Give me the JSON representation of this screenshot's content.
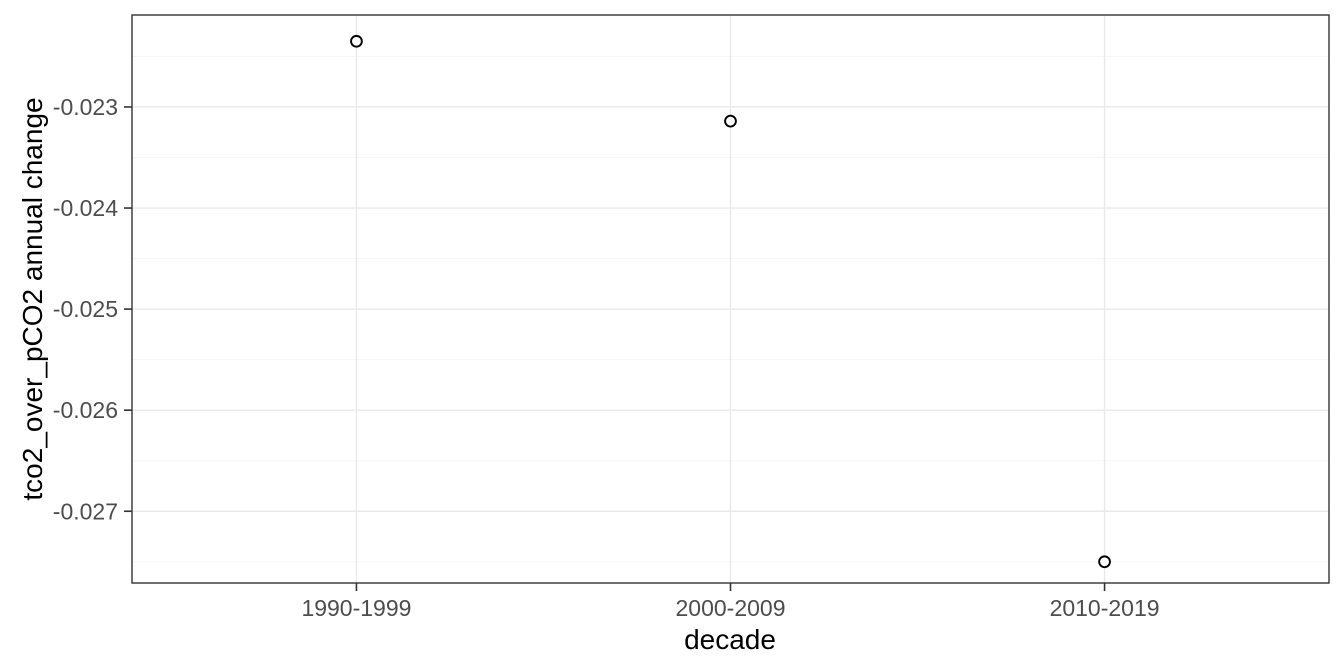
{
  "figure": {
    "background": "#ffffff"
  },
  "chart_data": {
    "type": "scatter",
    "title": "",
    "xlabel": "decade",
    "ylabel": "tco2_over_pCO2 annual change",
    "categories": [
      "1990-1999",
      "2000-2009",
      "2010-2019"
    ],
    "values": [
      -0.02235,
      -0.02314,
      -0.0275
    ],
    "y_ticks": [
      -0.023,
      -0.024,
      -0.025,
      -0.026,
      -0.027
    ],
    "y_tick_labels": [
      "-0.023",
      "-0.024",
      "-0.025",
      "-0.026",
      "-0.027"
    ],
    "ylim": [
      -0.02771,
      -0.02209
    ],
    "grid": true,
    "minor_grid": true,
    "legend": false,
    "point_style": "open-circle",
    "colors": {
      "point_stroke": "#000000",
      "point_fill": "#ffffff",
      "grid_major": "#e9e9e9",
      "grid_minor": "#f5f5f5",
      "panel_border": "#343434",
      "tick_mark": "#333333",
      "tick_label": "#4d4d4d",
      "axis_title": "#000000",
      "panel_background": "#ffffff"
    }
  }
}
